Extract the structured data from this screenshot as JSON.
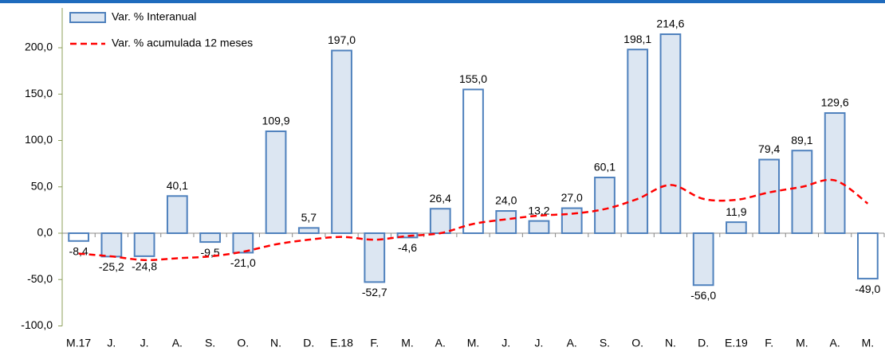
{
  "chart_data": {
    "type": "bar",
    "categories": [
      "M.17",
      "J.",
      "J.",
      "A.",
      "S.",
      "O.",
      "N.",
      "D.",
      "E.18",
      "F.",
      "M.",
      "A.",
      "M.",
      "J.",
      "J.",
      "A.",
      "S.",
      "O.",
      "N.",
      "D.",
      "E.19",
      "F.",
      "M.",
      "A.",
      "M."
    ],
    "series": [
      {
        "name": "Var. % Interanual",
        "type": "bar",
        "color": "#dce6f2",
        "edge_color": "#4f81bd",
        "colors": [
          "#ffffff",
          "#dce6f2",
          "#dce6f2",
          "#dce6f2",
          "#dce6f2",
          "#dce6f2",
          "#dce6f2",
          "#dce6f2",
          "#dce6f2",
          "#dce6f2",
          "#dce6f2",
          "#dce6f2",
          "#ffffff",
          "#dce6f2",
          "#dce6f2",
          "#dce6f2",
          "#dce6f2",
          "#dce6f2",
          "#dce6f2",
          "#dce6f2",
          "#dce6f2",
          "#dce6f2",
          "#dce6f2",
          "#dce6f2",
          "#ffffff"
        ],
        "values": [
          -8.4,
          -25.2,
          -24.8,
          40.1,
          -9.5,
          -21.0,
          109.9,
          5.7,
          197.0,
          -52.7,
          -4.6,
          26.4,
          155.0,
          24.0,
          13.2,
          27.0,
          60.1,
          198.1,
          214.6,
          -56.0,
          11.9,
          79.4,
          89.1,
          129.6,
          -49.0
        ],
        "value_labels": [
          "-8,4",
          "-25,2",
          "-24,8",
          "40,1",
          "-9,5",
          "-21,0",
          "109,9",
          "5,7",
          "197,0",
          "-52,7",
          "-4,6",
          "26,4",
          "155,0",
          "24,0",
          "13,2",
          "27,0",
          "60,1",
          "198,1",
          "214,6",
          "-56,0",
          "11,9",
          "79,4",
          "89,1",
          "129,6",
          "-49,0"
        ]
      },
      {
        "name": "Var. % acumulada 12 meses",
        "type": "line",
        "color": "#ff0000",
        "dashed": true,
        "values": [
          -22,
          -25,
          -29,
          -27,
          -25,
          -20,
          -12,
          -7,
          -4,
          -7,
          -3,
          0,
          10,
          15,
          19,
          21,
          26,
          37,
          52,
          37,
          36,
          44,
          50,
          57,
          32
        ]
      }
    ],
    "ylim": [
      -100,
      230
    ],
    "yticks": [
      {
        "value": -100,
        "label": "-100,0"
      },
      {
        "value": -50,
        "label": "-50,0"
      },
      {
        "value": 0,
        "label": "0,0"
      },
      {
        "value": 50,
        "label": "50,0"
      },
      {
        "value": 100,
        "label": "100,0"
      },
      {
        "value": 150,
        "label": "150,0"
      },
      {
        "value": 200,
        "label": "200,0"
      }
    ],
    "legend": "upper left",
    "axis_color": "#8c9f5a",
    "header_color": "#1f6bbd"
  }
}
